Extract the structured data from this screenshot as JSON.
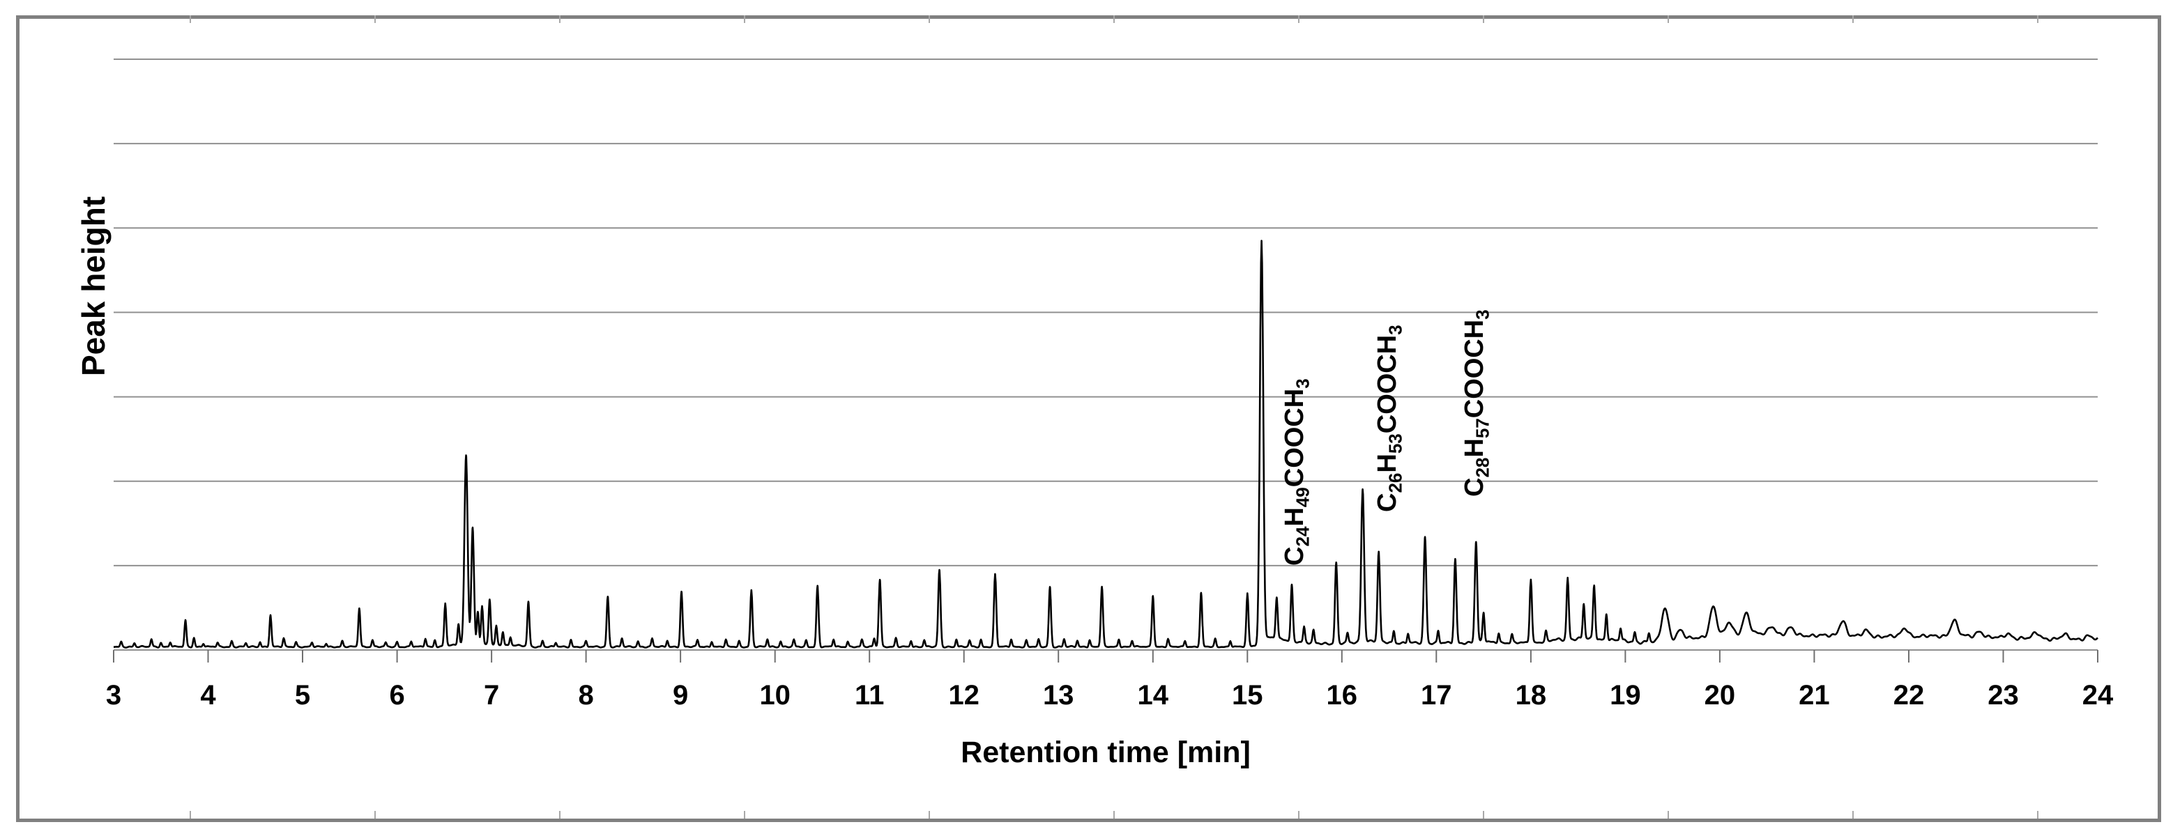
{
  "figure": {
    "kind": "gas chromatogram (GC trace of fatty acid methyl esters)",
    "title": ""
  },
  "axes": {
    "x_title": "Retention time [min]",
    "y_title": "Peak height",
    "x_ticks": [
      "3",
      "4",
      "5",
      "6",
      "7",
      "8",
      "9",
      "10",
      "11",
      "12",
      "13",
      "14",
      "15",
      "16",
      "17",
      "18",
      "19",
      "20",
      "21",
      "22",
      "23",
      "24"
    ],
    "x_range": [
      3,
      24
    ],
    "y_tick_labels": [],
    "horizontal_gridlines": 7
  },
  "compound_labels": [
    {
      "formula": "C24H49COOCH3",
      "segments": [
        [
          "C",
          0
        ],
        [
          "24",
          1
        ],
        [
          "H",
          0
        ],
        [
          "49",
          1
        ],
        [
          "COOCH",
          0
        ],
        [
          "3",
          1
        ]
      ],
      "retention_min": 15.15
    },
    {
      "formula": "C26H53COOCH3",
      "segments": [
        [
          "C",
          0
        ],
        [
          "26",
          1
        ],
        [
          "H",
          0
        ],
        [
          "53",
          1
        ],
        [
          "COOCH",
          0
        ],
        [
          "3",
          1
        ]
      ],
      "retention_min": 16.22
    },
    {
      "formula": "C28H57COOCH3",
      "segments": [
        [
          "C",
          0
        ],
        [
          "28",
          1
        ],
        [
          "H",
          0
        ],
        [
          "57",
          1
        ],
        [
          "COOCH",
          0
        ],
        [
          "3",
          1
        ]
      ],
      "retention_min": 17.42
    }
  ],
  "colors": {
    "trace": "#000000",
    "gridline": "#909090",
    "axis_line": "#909090",
    "tick": "#707070",
    "outer_border": "#808080",
    "text": "#000000",
    "background": "#ffffff"
  },
  "chart_data": {
    "type": "line",
    "x_label": "Retention time [min]",
    "y_label": "Peak height",
    "x_range": [
      3,
      24
    ],
    "x_unit": "min",
    "y_unit": "peak height, px above baseline at source resolution (tallest peak = 576)",
    "grid": true,
    "legend": false,
    "peaks": [
      [
        3.08,
        7
      ],
      [
        3.22,
        5
      ],
      [
        3.4,
        11
      ],
      [
        3.5,
        6
      ],
      [
        3.6,
        7
      ],
      [
        3.76,
        38
      ],
      [
        3.85,
        13
      ],
      [
        3.95,
        5
      ],
      [
        4.1,
        6
      ],
      [
        4.25,
        8
      ],
      [
        4.4,
        5
      ],
      [
        4.55,
        7
      ],
      [
        4.66,
        46
      ],
      [
        4.8,
        12
      ],
      [
        4.93,
        7
      ],
      [
        5.1,
        6
      ],
      [
        5.25,
        5
      ],
      [
        5.42,
        8
      ],
      [
        5.6,
        56
      ],
      [
        5.74,
        10
      ],
      [
        5.88,
        6
      ],
      [
        6.0,
        7
      ],
      [
        6.15,
        8
      ],
      [
        6.3,
        12
      ],
      [
        6.4,
        10
      ],
      [
        6.51,
        62
      ],
      [
        6.65,
        30
      ],
      [
        6.73,
        272
      ],
      [
        6.8,
        168
      ],
      [
        6.855,
        48
      ],
      [
        6.9,
        56
      ],
      [
        6.98,
        66
      ],
      [
        7.05,
        28
      ],
      [
        7.12,
        20
      ],
      [
        7.2,
        12
      ],
      [
        7.39,
        64
      ],
      [
        7.54,
        9
      ],
      [
        7.68,
        6
      ],
      [
        7.84,
        10
      ],
      [
        8.0,
        8
      ],
      [
        8.23,
        72
      ],
      [
        8.38,
        12
      ],
      [
        8.55,
        8
      ],
      [
        8.7,
        12
      ],
      [
        8.86,
        9
      ],
      [
        9.01,
        79
      ],
      [
        9.18,
        10
      ],
      [
        9.33,
        8
      ],
      [
        9.48,
        10
      ],
      [
        9.62,
        8
      ],
      [
        9.75,
        81
      ],
      [
        9.92,
        11
      ],
      [
        10.06,
        8
      ],
      [
        10.2,
        10
      ],
      [
        10.33,
        9
      ],
      [
        10.45,
        87
      ],
      [
        10.62,
        11
      ],
      [
        10.77,
        8
      ],
      [
        10.92,
        10
      ],
      [
        11.05,
        12
      ],
      [
        11.11,
        97
      ],
      [
        11.28,
        12
      ],
      [
        11.44,
        9
      ],
      [
        11.58,
        10
      ],
      [
        11.74,
        110
      ],
      [
        11.92,
        11
      ],
      [
        12.06,
        9
      ],
      [
        12.18,
        10
      ],
      [
        12.33,
        104
      ],
      [
        12.5,
        11
      ],
      [
        12.66,
        9
      ],
      [
        12.79,
        10
      ],
      [
        12.91,
        86
      ],
      [
        13.06,
        11
      ],
      [
        13.2,
        9
      ],
      [
        13.33,
        10
      ],
      [
        13.46,
        86
      ],
      [
        13.64,
        11
      ],
      [
        13.78,
        9
      ],
      [
        14.0,
        74
      ],
      [
        14.16,
        11
      ],
      [
        14.34,
        9
      ],
      [
        14.51,
        77
      ],
      [
        14.66,
        11
      ],
      [
        14.82,
        9
      ],
      [
        15.0,
        74
      ],
      [
        15.15,
        576
      ],
      [
        15.31,
        60
      ],
      [
        15.47,
        80
      ],
      [
        15.6,
        22
      ],
      [
        15.7,
        18
      ],
      [
        15.94,
        116
      ],
      [
        16.06,
        14
      ],
      [
        16.22,
        220
      ],
      [
        16.39,
        128
      ],
      [
        16.55,
        18
      ],
      [
        16.7,
        14
      ],
      [
        16.88,
        152
      ],
      [
        17.02,
        18
      ],
      [
        17.2,
        120
      ],
      [
        17.42,
        144
      ],
      [
        17.5,
        42
      ],
      [
        17.66,
        14
      ],
      [
        17.8,
        12
      ],
      [
        18.0,
        92
      ],
      [
        18.16,
        14
      ],
      [
        18.39,
        88
      ],
      [
        18.56,
        50
      ],
      [
        18.67,
        78
      ],
      [
        18.8,
        38
      ],
      [
        18.95,
        18
      ],
      [
        19.1,
        14
      ],
      [
        19.25,
        12
      ],
      [
        19.42,
        48
      ],
      [
        19.58,
        14
      ],
      [
        19.93,
        42
      ],
      [
        20.1,
        18
      ],
      [
        20.28,
        30
      ],
      [
        20.55,
        12
      ],
      [
        20.75,
        10
      ],
      [
        21.3,
        22
      ],
      [
        21.55,
        8
      ],
      [
        21.96,
        12
      ],
      [
        22.48,
        22
      ],
      [
        22.75,
        8
      ],
      [
        23.05,
        6
      ],
      [
        23.35,
        8
      ],
      [
        23.65,
        6
      ],
      [
        23.9,
        5
      ]
    ],
    "baseline_drift": [
      [
        3,
        1
      ],
      [
        6.45,
        1
      ],
      [
        6.65,
        4
      ],
      [
        7.25,
        3
      ],
      [
        7.45,
        1
      ],
      [
        14.95,
        1
      ],
      [
        15.1,
        3
      ],
      [
        15.22,
        14
      ],
      [
        15.42,
        10
      ],
      [
        15.65,
        6
      ],
      [
        15.95,
        5
      ],
      [
        16.15,
        7
      ],
      [
        16.33,
        9
      ],
      [
        16.55,
        6
      ],
      [
        16.95,
        6
      ],
      [
        17.25,
        6
      ],
      [
        17.52,
        8
      ],
      [
        17.75,
        6
      ],
      [
        18.1,
        7
      ],
      [
        18.3,
        11
      ],
      [
        18.6,
        12
      ],
      [
        18.85,
        10
      ],
      [
        19.15,
        7
      ],
      [
        19.45,
        8
      ],
      [
        19.75,
        13
      ],
      [
        20.05,
        17
      ],
      [
        20.4,
        19
      ],
      [
        20.75,
        17
      ],
      [
        21.15,
        16
      ],
      [
        21.65,
        15
      ],
      [
        22.05,
        15
      ],
      [
        22.55,
        16
      ],
      [
        22.95,
        13
      ],
      [
        23.35,
        12
      ],
      [
        23.7,
        11
      ],
      [
        24,
        11
      ]
    ]
  }
}
